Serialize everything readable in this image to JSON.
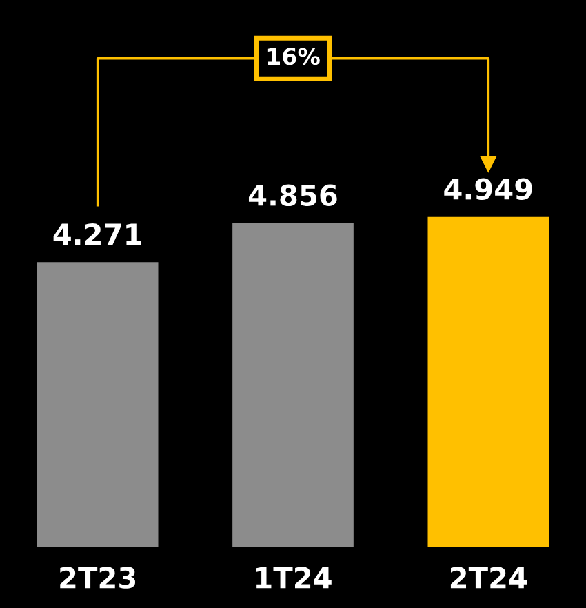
{
  "chart_data": {
    "type": "bar",
    "categories": [
      "2T23",
      "1T24",
      "2T24"
    ],
    "values": [
      4.271,
      4.856,
      4.949
    ],
    "colors": [
      "#8c8c8c",
      "#8c8c8c",
      "#ffc000"
    ],
    "value_labels": [
      "4.271",
      "4.856",
      "4.949"
    ],
    "annotations": [
      "16%"
    ]
  }
}
